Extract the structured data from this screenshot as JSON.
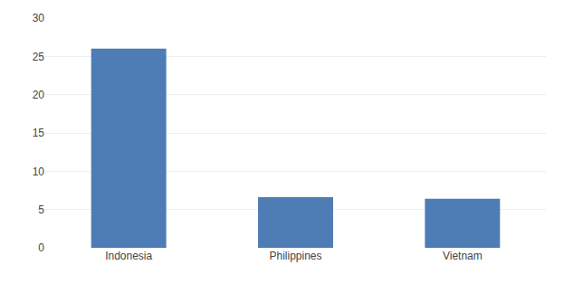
{
  "chart_data": {
    "type": "bar",
    "categories": [
      "Indonesia",
      "Philippines",
      "Vietnam"
    ],
    "values": [
      26.0,
      6.6,
      6.4
    ],
    "color": "#4e7db5",
    "ylim": [
      0,
      30
    ],
    "yticks": [
      0,
      5,
      10,
      15,
      20,
      25,
      30
    ],
    "grid": true
  }
}
